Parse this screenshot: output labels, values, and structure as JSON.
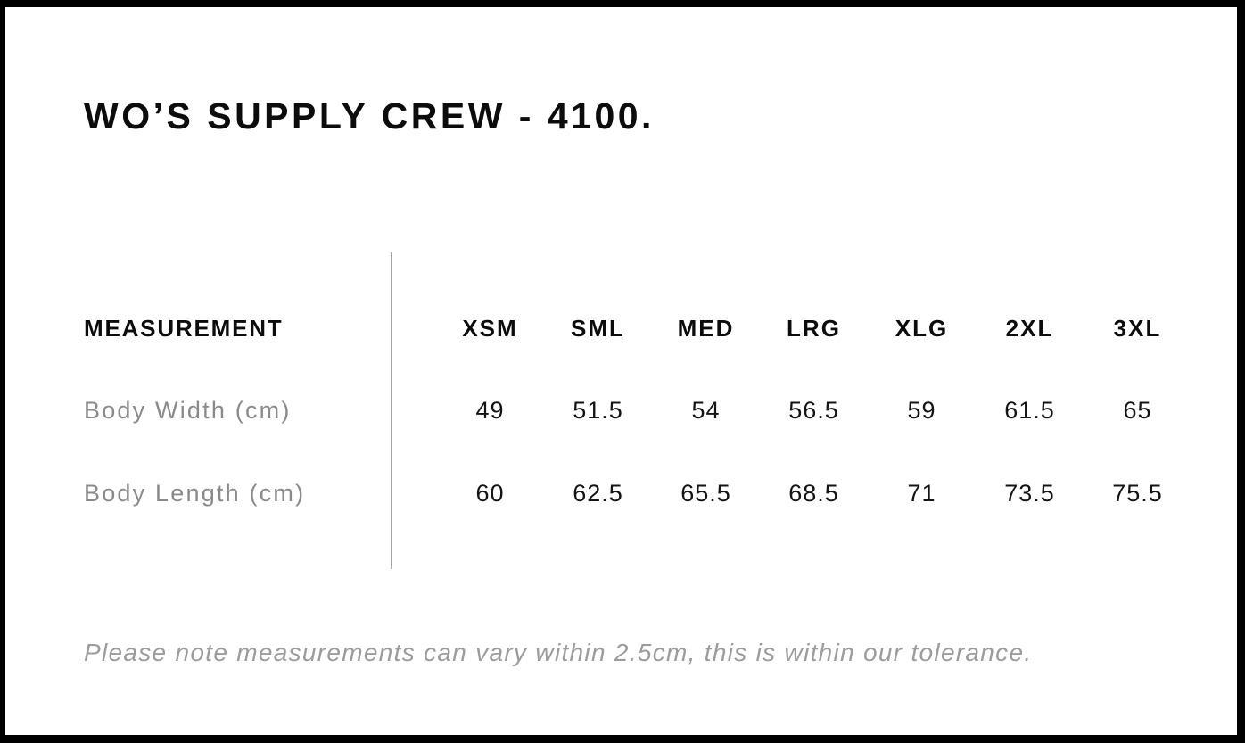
{
  "header": {
    "title": "WO’S SUPPLY CREW - 4100."
  },
  "table": {
    "header_label": "MEASUREMENT",
    "sizes": [
      "XSM",
      "SML",
      "MED",
      "LRG",
      "XLG",
      "2XL",
      "3XL"
    ],
    "rows": [
      {
        "label": "Body Width (cm)",
        "values": [
          "49",
          "51.5",
          "54",
          "56.5",
          "59",
          "61.5",
          "65"
        ]
      },
      {
        "label": "Body Length (cm)",
        "values": [
          "60",
          "62.5",
          "65.5",
          "68.5",
          "71",
          "73.5",
          "75.5"
        ]
      }
    ]
  },
  "footer": {
    "note": "Please note measurements can vary within 2.5cm, this is within our tolerance."
  },
  "colors": {
    "border": "#000000",
    "heading_text": "#0c0c0c",
    "value_text": "#141414",
    "label_text": "#8a8a8a",
    "note_text": "#9c9c9c",
    "divider_line": "#a6a6a6",
    "background": "#ffffff"
  },
  "chart_data": {
    "type": "table",
    "title": "WO’S SUPPLY CREW - 4100.",
    "columns": [
      "MEASUREMENT",
      "XSM",
      "SML",
      "MED",
      "LRG",
      "XLG",
      "2XL",
      "3XL"
    ],
    "rows": [
      [
        "Body Width (cm)",
        49,
        51.5,
        54,
        56.5,
        59,
        61.5,
        65
      ],
      [
        "Body Length (cm)",
        60,
        62.5,
        65.5,
        68.5,
        71,
        73.5,
        75.5
      ]
    ],
    "note": "Please note measurements can vary within 2.5cm, this is within our tolerance."
  }
}
